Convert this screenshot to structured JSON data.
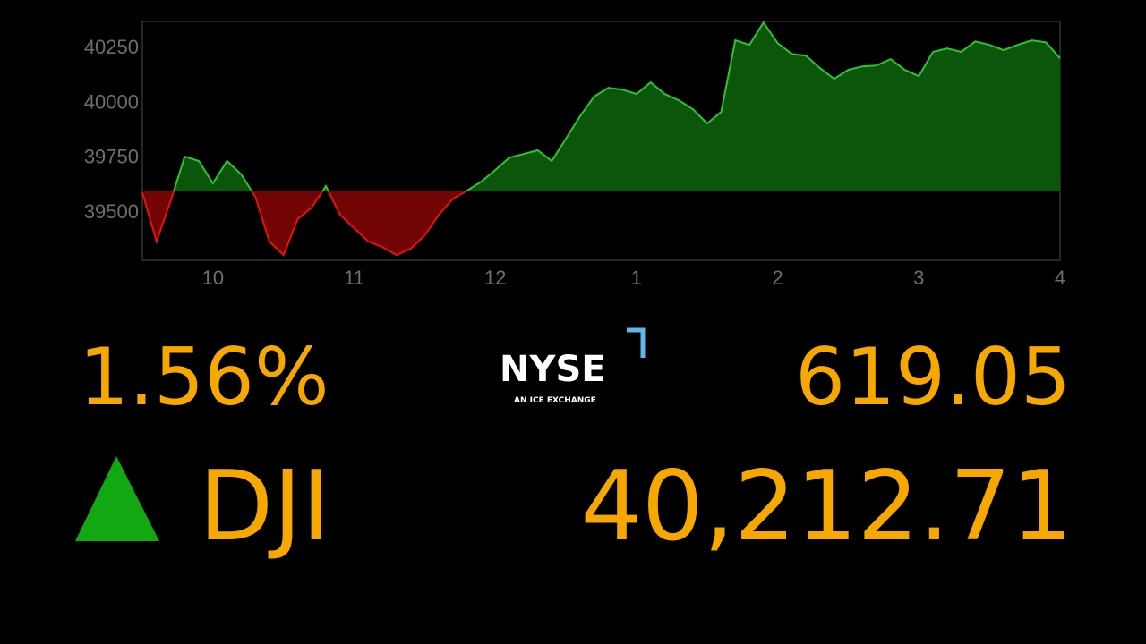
{
  "chart_data": {
    "type": "area",
    "x": [
      9.5,
      9.6,
      9.7,
      9.8,
      9.9,
      10.0,
      10.1,
      10.2,
      10.3,
      10.4,
      10.5,
      10.6,
      10.7,
      10.8,
      10.9,
      11.0,
      11.1,
      11.2,
      11.3,
      11.4,
      11.5,
      11.6,
      11.7,
      11.8,
      11.9,
      12.0,
      12.1,
      12.2,
      12.3,
      12.4,
      12.5,
      12.6,
      12.7,
      12.8,
      12.9,
      13.0,
      13.1,
      13.2,
      13.3,
      13.4,
      13.5,
      13.6,
      13.7,
      13.8,
      13.9,
      14.0,
      14.1,
      14.2,
      14.3,
      14.4,
      14.5,
      14.6,
      14.7,
      14.8,
      14.9,
      15.0,
      15.1,
      15.2,
      15.3,
      15.4,
      15.5,
      15.6,
      15.7,
      15.8,
      15.9,
      16.0
    ],
    "values": [
      39585,
      39361,
      39544,
      39748,
      39728,
      39626,
      39728,
      39667,
      39565,
      39361,
      39299,
      39463,
      39516,
      39614,
      39483,
      39422,
      39361,
      39336,
      39299,
      39328,
      39389,
      39483,
      39556,
      39593,
      39634,
      39687,
      39744,
      39760,
      39777,
      39728,
      39830,
      39932,
      40022,
      40062,
      40054,
      40034,
      40087,
      40034,
      40005,
      39964,
      39899,
      39952,
      40279,
      40258,
      40360,
      40266,
      40217,
      40209,
      40152,
      40103,
      40144,
      40160,
      40164,
      40193,
      40144,
      40115,
      40226,
      40242,
      40226,
      40274,
      40258,
      40234,
      40258,
      40279,
      40270,
      40197
    ],
    "baseline": 39590,
    "up_color": "#2fc42f",
    "up_fill": "#0b560b",
    "down_color": "#e3120f",
    "down_fill": "#720404",
    "ylim": [
      39275,
      40365
    ],
    "yticks": [
      39500,
      39750,
      40000,
      40250
    ],
    "xlim": [
      9.5,
      16
    ],
    "xticks": [
      10,
      11,
      12,
      {
        "value": 13,
        "label": "1"
      },
      {
        "value": 14,
        "label": "2"
      },
      {
        "value": 15,
        "label": "3"
      },
      {
        "value": 16,
        "label": "4"
      }
    ]
  },
  "ticker": {
    "change_percent": "1.56%",
    "change_points": "619.05",
    "symbol": "DJI",
    "price": "40,212.71"
  },
  "logo": {
    "name": "NYSE",
    "tagline": "AN ICE EXCHANGE"
  }
}
